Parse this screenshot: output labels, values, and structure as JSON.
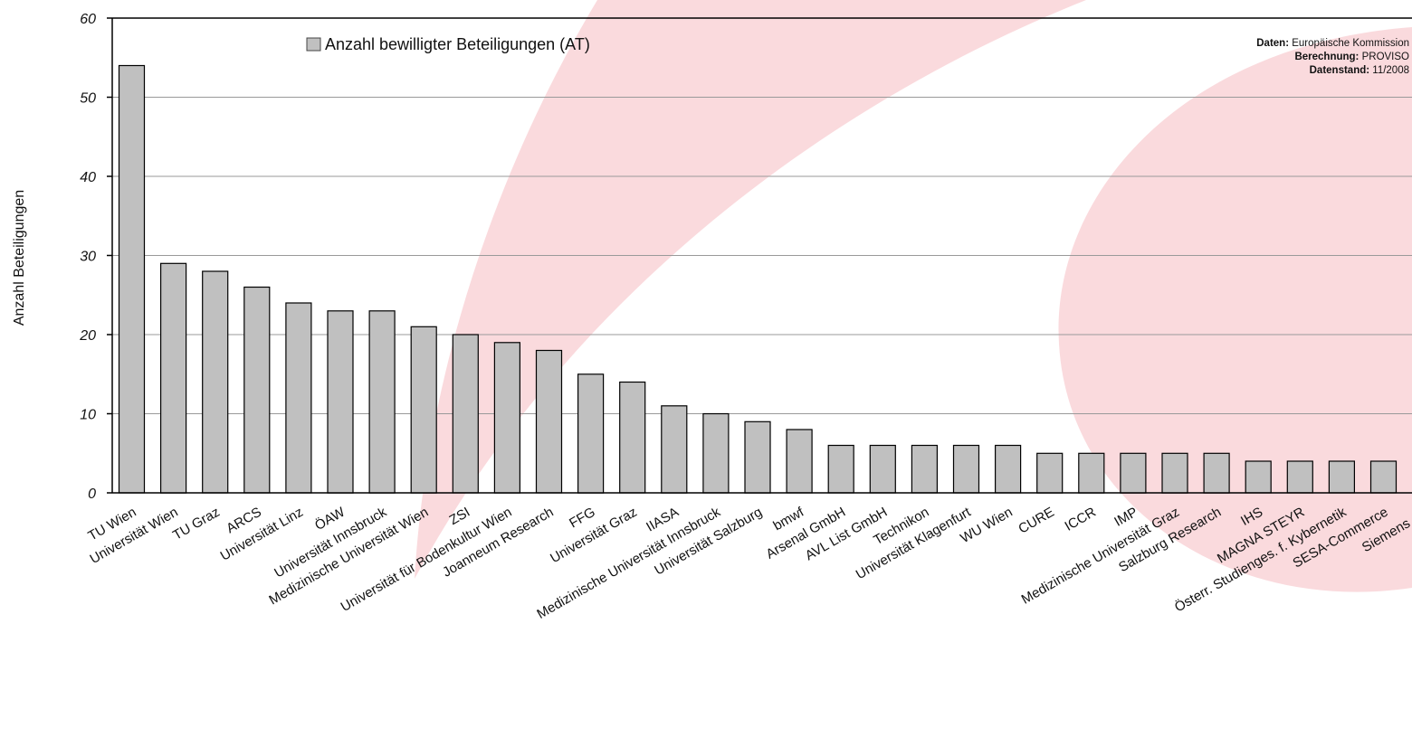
{
  "chart_data": {
    "type": "bar",
    "ylabel": "Anzahl Beteiligungen",
    "ylim": [
      0,
      60
    ],
    "yticks": [
      0,
      10,
      20,
      30,
      40,
      50,
      60
    ],
    "grid": true,
    "legend": "top-left",
    "categories": [
      "TU Wien",
      "Universität Wien",
      "TU Graz",
      "ARCS",
      "Universität Linz",
      "ÖAW",
      "Universität Innsbruck",
      "Medizinische Universität Wien",
      "ZSI",
      "Universität für Bodenkultur Wien",
      "Joanneum Research",
      "FFG",
      "Universität Graz",
      "IIASA",
      "Medizinische Universität Innsbruck",
      "Universität Salzburg",
      "bmwf",
      "Arsenal GmbH",
      "AVL List GmbH",
      "Technikon",
      "Universität Klagenfurt",
      "WU Wien",
      "CURE",
      "ICCR",
      "IMP",
      "Medizinische Universität Graz",
      "Salzburg Research",
      "IHS",
      "MAGNA STEYR",
      "Österr. Studienges. f. Kybernetik",
      "SESA-Commerce",
      "Siemens AG"
    ],
    "series": [
      {
        "name": "Anzahl bewilligter Beteiligungen (AT)",
        "color": "#c0c0c0",
        "values": [
          54,
          29,
          28,
          26,
          24,
          23,
          23,
          21,
          20,
          19,
          18,
          15,
          14,
          11,
          10,
          9,
          8,
          6,
          6,
          6,
          6,
          6,
          5,
          5,
          5,
          5,
          5,
          4,
          4,
          4,
          4,
          4
        ]
      }
    ],
    "source": [
      {
        "label": "Daten:",
        "value": "Europäische Kommission"
      },
      {
        "label": "Berechnung:",
        "value": "PROVISO"
      },
      {
        "label": "Datenstand:",
        "value": "11/2008"
      }
    ],
    "background_color": "#fadadd"
  }
}
